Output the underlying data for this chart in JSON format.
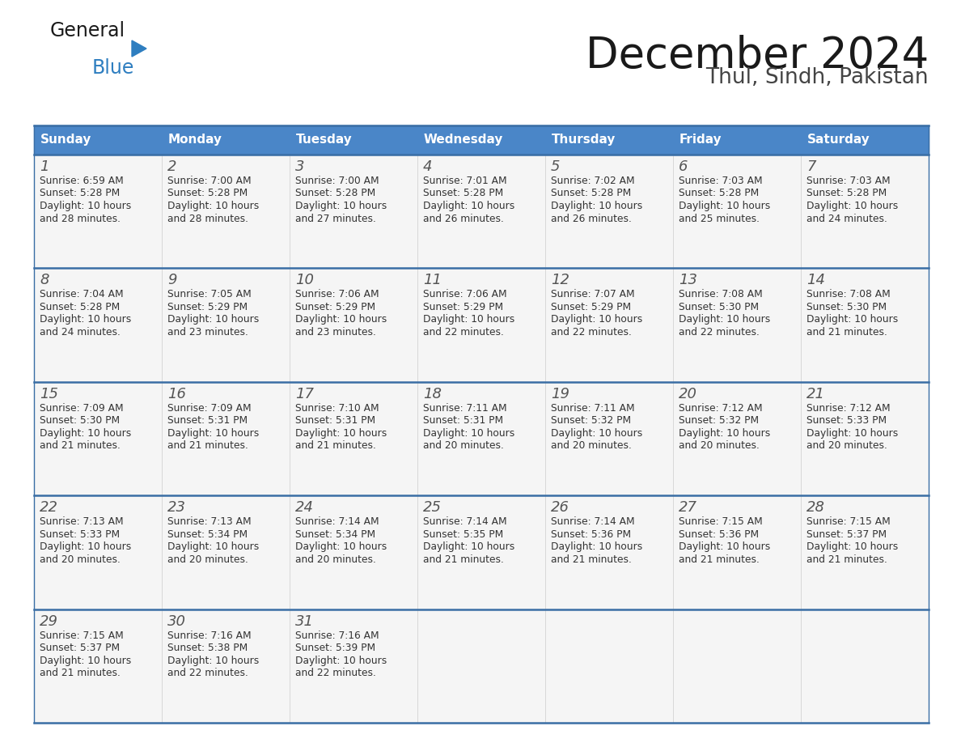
{
  "title": "December 2024",
  "subtitle": "Thul, Sindh, Pakistan",
  "days_of_week": [
    "Sunday",
    "Monday",
    "Tuesday",
    "Wednesday",
    "Thursday",
    "Friday",
    "Saturday"
  ],
  "header_bg_color": "#4a86c8",
  "header_text_color": "#ffffff",
  "cell_bg_color": "#f5f5f5",
  "separator_color": "#3a6ea5",
  "title_color": "#1a1a1a",
  "subtitle_color": "#444444",
  "day_number_color": "#555555",
  "cell_text_color": "#333333",
  "calendar_data": [
    [
      {
        "day": 1,
        "sunrise": "6:59 AM",
        "sunset": "5:28 PM",
        "daylight": "10 hours and 28 minutes."
      },
      {
        "day": 2,
        "sunrise": "7:00 AM",
        "sunset": "5:28 PM",
        "daylight": "10 hours and 28 minutes."
      },
      {
        "day": 3,
        "sunrise": "7:00 AM",
        "sunset": "5:28 PM",
        "daylight": "10 hours and 27 minutes."
      },
      {
        "day": 4,
        "sunrise": "7:01 AM",
        "sunset": "5:28 PM",
        "daylight": "10 hours and 26 minutes."
      },
      {
        "day": 5,
        "sunrise": "7:02 AM",
        "sunset": "5:28 PM",
        "daylight": "10 hours and 26 minutes."
      },
      {
        "day": 6,
        "sunrise": "7:03 AM",
        "sunset": "5:28 PM",
        "daylight": "10 hours and 25 minutes."
      },
      {
        "day": 7,
        "sunrise": "7:03 AM",
        "sunset": "5:28 PM",
        "daylight": "10 hours and 24 minutes."
      }
    ],
    [
      {
        "day": 8,
        "sunrise": "7:04 AM",
        "sunset": "5:28 PM",
        "daylight": "10 hours and 24 minutes."
      },
      {
        "day": 9,
        "sunrise": "7:05 AM",
        "sunset": "5:29 PM",
        "daylight": "10 hours and 23 minutes."
      },
      {
        "day": 10,
        "sunrise": "7:06 AM",
        "sunset": "5:29 PM",
        "daylight": "10 hours and 23 minutes."
      },
      {
        "day": 11,
        "sunrise": "7:06 AM",
        "sunset": "5:29 PM",
        "daylight": "10 hours and 22 minutes."
      },
      {
        "day": 12,
        "sunrise": "7:07 AM",
        "sunset": "5:29 PM",
        "daylight": "10 hours and 22 minutes."
      },
      {
        "day": 13,
        "sunrise": "7:08 AM",
        "sunset": "5:30 PM",
        "daylight": "10 hours and 22 minutes."
      },
      {
        "day": 14,
        "sunrise": "7:08 AM",
        "sunset": "5:30 PM",
        "daylight": "10 hours and 21 minutes."
      }
    ],
    [
      {
        "day": 15,
        "sunrise": "7:09 AM",
        "sunset": "5:30 PM",
        "daylight": "10 hours and 21 minutes."
      },
      {
        "day": 16,
        "sunrise": "7:09 AM",
        "sunset": "5:31 PM",
        "daylight": "10 hours and 21 minutes."
      },
      {
        "day": 17,
        "sunrise": "7:10 AM",
        "sunset": "5:31 PM",
        "daylight": "10 hours and 21 minutes."
      },
      {
        "day": 18,
        "sunrise": "7:11 AM",
        "sunset": "5:31 PM",
        "daylight": "10 hours and 20 minutes."
      },
      {
        "day": 19,
        "sunrise": "7:11 AM",
        "sunset": "5:32 PM",
        "daylight": "10 hours and 20 minutes."
      },
      {
        "day": 20,
        "sunrise": "7:12 AM",
        "sunset": "5:32 PM",
        "daylight": "10 hours and 20 minutes."
      },
      {
        "day": 21,
        "sunrise": "7:12 AM",
        "sunset": "5:33 PM",
        "daylight": "10 hours and 20 minutes."
      }
    ],
    [
      {
        "day": 22,
        "sunrise": "7:13 AM",
        "sunset": "5:33 PM",
        "daylight": "10 hours and 20 minutes."
      },
      {
        "day": 23,
        "sunrise": "7:13 AM",
        "sunset": "5:34 PM",
        "daylight": "10 hours and 20 minutes."
      },
      {
        "day": 24,
        "sunrise": "7:14 AM",
        "sunset": "5:34 PM",
        "daylight": "10 hours and 20 minutes."
      },
      {
        "day": 25,
        "sunrise": "7:14 AM",
        "sunset": "5:35 PM",
        "daylight": "10 hours and 21 minutes."
      },
      {
        "day": 26,
        "sunrise": "7:14 AM",
        "sunset": "5:36 PM",
        "daylight": "10 hours and 21 minutes."
      },
      {
        "day": 27,
        "sunrise": "7:15 AM",
        "sunset": "5:36 PM",
        "daylight": "10 hours and 21 minutes."
      },
      {
        "day": 28,
        "sunrise": "7:15 AM",
        "sunset": "5:37 PM",
        "daylight": "10 hours and 21 minutes."
      }
    ],
    [
      {
        "day": 29,
        "sunrise": "7:15 AM",
        "sunset": "5:37 PM",
        "daylight": "10 hours and 21 minutes."
      },
      {
        "day": 30,
        "sunrise": "7:16 AM",
        "sunset": "5:38 PM",
        "daylight": "10 hours and 22 minutes."
      },
      {
        "day": 31,
        "sunrise": "7:16 AM",
        "sunset": "5:39 PM",
        "daylight": "10 hours and 22 minutes."
      },
      null,
      null,
      null,
      null
    ]
  ],
  "logo_general_color": "#1a1a1a",
  "logo_blue_color": "#2e7ec0",
  "logo_triangle_color": "#2e7ec0",
  "background_color": "#ffffff"
}
